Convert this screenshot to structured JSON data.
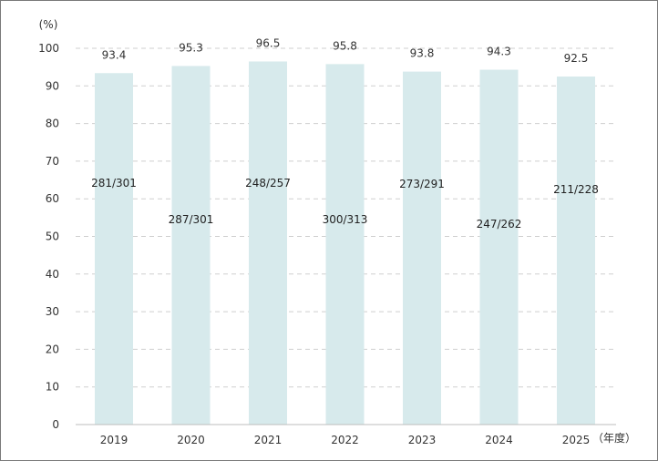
{
  "chart_data": {
    "type": "bar",
    "y_unit_label": "(%)",
    "x_unit_label": "（年度）",
    "categories": [
      "2019",
      "2020",
      "2021",
      "2022",
      "2023",
      "2024",
      "2025"
    ],
    "values": [
      93.4,
      95.3,
      96.5,
      95.8,
      93.8,
      94.3,
      92.5
    ],
    "value_labels": [
      "93.4",
      "95.3",
      "96.5",
      "95.8",
      "93.8",
      "94.3",
      "92.5"
    ],
    "ratio_labels": [
      "281/301",
      "287/301",
      "248/257",
      "300/313",
      "273/291",
      "247/262",
      "211/228"
    ],
    "y_ticks": [
      "0",
      "10",
      "20",
      "30",
      "40",
      "50",
      "60",
      "70",
      "80",
      "90",
      "100"
    ],
    "ylim": [
      0,
      100
    ],
    "grid": true,
    "bar_color": "#d7eaec",
    "grid_color": "#cfcfcf",
    "axis_color": "#bdbdbd",
    "text_color": "#333333"
  }
}
